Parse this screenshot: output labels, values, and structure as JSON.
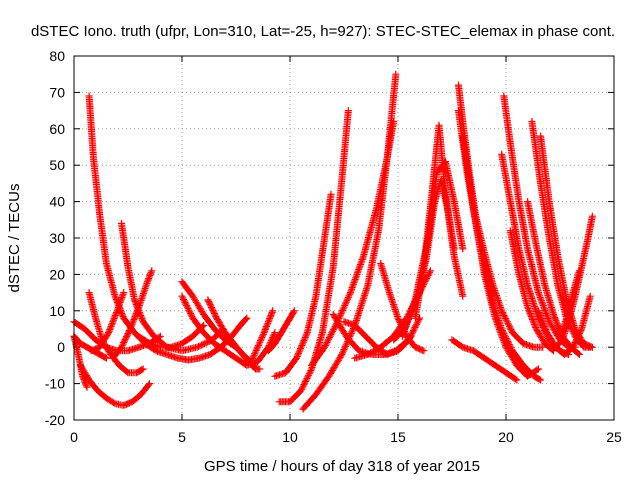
{
  "chart_data": {
    "type": "scatter",
    "title": "dSTEC Iono. truth (ufpr, Lon=310, Lat=-25, h=927): STEC-STEC_elemax in phase cont.",
    "xlabel": "GPS time / hours of day 318 of year 2015",
    "ylabel": "dSTEC  / TECUs",
    "xlim": [
      0,
      25
    ],
    "ylim": [
      -20,
      80
    ],
    "xticks": [
      0,
      5,
      10,
      15,
      20,
      25
    ],
    "yticks": [
      -20,
      -10,
      0,
      10,
      20,
      30,
      40,
      50,
      60,
      70,
      80
    ],
    "grid": true,
    "marker": "+",
    "marker_color": "#ff0000",
    "series": [
      {
        "x": [
          0.7,
          0.9,
          1.2,
          1.5,
          1.9,
          2.3,
          2.8,
          3.3,
          3.8,
          4.3,
          4.8,
          5.3,
          5.8,
          6.3,
          6.8,
          7.3,
          7.7,
          8.0
        ],
        "y": [
          69,
          52,
          36,
          23,
          14,
          8,
          4,
          1,
          -1,
          -2,
          -3,
          -3.5,
          -3,
          -2,
          0,
          3,
          6,
          8
        ]
      },
      {
        "x": [
          0.0,
          0.3,
          0.6,
          0.9,
          1.2,
          1.5
        ],
        "y": [
          3,
          1,
          0,
          -1,
          -2,
          -3
        ]
      },
      {
        "x": [
          0.0,
          0.5,
          1.0,
          1.5,
          2.0,
          2.5,
          3.0,
          3.5,
          4.0
        ],
        "y": [
          7,
          5,
          2,
          0,
          -1,
          -1,
          0,
          1,
          3
        ]
      },
      {
        "x": [
          0.7,
          1.0,
          1.3,
          1.7,
          2.1,
          2.5,
          2.9,
          3.2
        ],
        "y": [
          15,
          8,
          2,
          -2,
          -5,
          -7,
          -7,
          -6
        ]
      },
      {
        "x": [
          0.0,
          0.2,
          0.4,
          0.6
        ],
        "y": [
          3,
          -2,
          -8,
          -11
        ]
      },
      {
        "x": [
          0.3,
          0.7,
          1.1,
          1.5,
          1.9,
          2.3,
          2.7,
          3.1,
          3.5
        ],
        "y": [
          -5,
          -9,
          -12,
          -14,
          -15.5,
          -16,
          -15,
          -13,
          -10
        ]
      },
      {
        "x": [
          0.8,
          1.2,
          1.6,
          2.0,
          2.3
        ],
        "y": [
          -1,
          0,
          4,
          10,
          15
        ]
      },
      {
        "x": [
          2.2,
          2.5,
          2.8,
          3.2,
          3.7,
          4.3,
          5.0,
          5.7,
          6.4,
          6.9
        ],
        "y": [
          34,
          22,
          13,
          7,
          3,
          0,
          -1,
          0,
          2,
          5
        ]
      },
      {
        "x": [
          1.8,
          2.2,
          2.6,
          3.0,
          3.4,
          3.6
        ],
        "y": [
          -3,
          0,
          5,
          11,
          18,
          21
        ]
      },
      {
        "x": [
          3.0,
          3.5,
          4.0,
          4.5,
          5.0,
          5.5,
          6.0
        ],
        "y": [
          3,
          1,
          0,
          0,
          1,
          3,
          6
        ]
      },
      {
        "x": [
          5.0,
          5.5,
          6.0,
          6.5,
          7.0,
          7.5,
          8.0,
          8.3
        ],
        "y": [
          18,
          14,
          9,
          5,
          2,
          0,
          -3,
          -5
        ]
      },
      {
        "x": [
          5.0,
          5.5,
          6.0,
          6.5,
          7.0,
          7.5,
          8.0,
          8.5,
          9.0,
          9.3
        ],
        "y": [
          14,
          8,
          4,
          1,
          -1,
          -3,
          -5,
          -4,
          0,
          4
        ]
      },
      {
        "x": [
          6.2,
          6.6,
          7.0,
          7.4,
          7.8,
          8.1,
          8.4,
          8.6
        ],
        "y": [
          13,
          8,
          4,
          1,
          -2,
          -4,
          -6,
          -6
        ]
      },
      {
        "x": [
          8.2,
          8.5,
          8.8,
          9.0,
          9.2
        ],
        "y": [
          -4,
          0,
          4,
          7,
          10
        ]
      },
      {
        "x": [
          9.0,
          9.3,
          9.6,
          9.9,
          10.2
        ],
        "y": [
          -1,
          1,
          4,
          7,
          10
        ]
      },
      {
        "x": [
          9.3,
          9.8,
          10.3,
          10.8,
          11.2,
          11.6,
          11.9
        ],
        "y": [
          -8,
          -7,
          -3,
          4,
          14,
          30,
          42
        ]
      },
      {
        "x": [
          9.5,
          10.0,
          10.5,
          11.0,
          11.5,
          12.0,
          12.4,
          12.7
        ],
        "y": [
          -15,
          -15,
          -12,
          -6,
          4,
          22,
          46,
          65
        ]
      },
      {
        "x": [
          10.6,
          11.2,
          11.8,
          12.4,
          13.0,
          13.6,
          14.1,
          14.5,
          14.9
        ],
        "y": [
          -17,
          -13,
          -8,
          -2,
          6,
          17,
          32,
          52,
          75
        ]
      },
      {
        "x": [
          11.0,
          11.6,
          12.2,
          12.8,
          13.4,
          14.0,
          14.5,
          14.8
        ],
        "y": [
          -5,
          0,
          7,
          15,
          25,
          38,
          52,
          62
        ]
      },
      {
        "x": [
          12.0,
          12.6,
          13.2,
          13.8,
          14.4,
          14.9,
          15.3,
          15.6
        ],
        "y": [
          9,
          3,
          -1,
          -2,
          -2,
          -1,
          1,
          3
        ]
      },
      {
        "x": [
          12.5,
          13.0,
          13.5,
          14.0,
          14.5,
          15.0,
          15.5,
          16.0
        ],
        "y": [
          7,
          6,
          3,
          0,
          -2,
          -1,
          2,
          8
        ]
      },
      {
        "x": [
          14.2,
          14.6,
          15.0,
          15.4,
          15.8,
          16.2
        ],
        "y": [
          23,
          15,
          8,
          3,
          0,
          -1
        ]
      },
      {
        "x": [
          13.0,
          13.6,
          14.2,
          14.8,
          15.4,
          16.0,
          16.5
        ],
        "y": [
          -3,
          -2,
          0,
          3,
          8,
          15,
          21
        ]
      },
      {
        "x": [
          14.8,
          15.3,
          15.8,
          16.3,
          16.7,
          17.0,
          17.3,
          17.6
        ],
        "y": [
          2,
          5,
          12,
          24,
          40,
          46,
          38,
          27
        ]
      },
      {
        "x": [
          15.2,
          15.8,
          16.4,
          16.8,
          17.2,
          17.6,
          18.0
        ],
        "y": [
          3,
          13,
          30,
          48,
          51,
          40,
          27
        ]
      },
      {
        "x": [
          15.8,
          16.2,
          16.6,
          16.9,
          17.2,
          17.6,
          18.0
        ],
        "y": [
          8,
          22,
          44,
          61,
          42,
          25,
          14
        ]
      },
      {
        "x": [
          17.8,
          18.0,
          18.3,
          18.6,
          19.0,
          19.4,
          19.8,
          20.3,
          20.8,
          21.3,
          21.7
        ],
        "y": [
          72,
          62,
          48,
          36,
          26,
          17,
          10,
          4,
          1,
          0,
          0
        ]
      },
      {
        "x": [
          17.8,
          18.2,
          18.6,
          19.0,
          19.4,
          19.8,
          20.3,
          20.8,
          21.3,
          21.6
        ],
        "y": [
          65,
          48,
          34,
          22,
          12,
          5,
          -1,
          -5,
          -8,
          -9
        ]
      },
      {
        "x": [
          18.0,
          18.5,
          19.0,
          19.5,
          20.0,
          20.5,
          21.0,
          21.5
        ],
        "y": [
          58,
          38,
          20,
          8,
          0,
          -5,
          -8,
          -6
        ]
      },
      {
        "x": [
          17.5,
          18.0,
          18.5,
          19.0,
          19.5,
          20.0,
          20.5
        ],
        "y": [
          2,
          0,
          -1,
          -3,
          -5,
          -7,
          -9
        ]
      },
      {
        "x": [
          19.9,
          20.2,
          20.6,
          21.0,
          21.5,
          22.0,
          22.5,
          22.9,
          23.2
        ],
        "y": [
          69,
          56,
          40,
          27,
          15,
          7,
          2,
          0,
          0
        ]
      },
      {
        "x": [
          19.8,
          20.2,
          20.6,
          21.0,
          21.5,
          22.0,
          22.5,
          22.9
        ],
        "y": [
          53,
          40,
          27,
          17,
          8,
          2,
          -1,
          -2
        ]
      },
      {
        "x": [
          20.2,
          20.6,
          21.0,
          21.4,
          21.8,
          22.2
        ],
        "y": [
          32,
          20,
          11,
          5,
          1,
          -1
        ]
      },
      {
        "x": [
          21.2,
          21.6,
          22.0,
          22.4,
          22.8,
          23.2,
          23.6,
          23.9
        ],
        "y": [
          62,
          45,
          30,
          17,
          8,
          3,
          0,
          0
        ]
      },
      {
        "x": [
          21.6,
          22.0,
          22.4,
          22.8,
          23.2,
          23.6,
          24.0
        ],
        "y": [
          58,
          40,
          25,
          13,
          5,
          1,
          0
        ]
      },
      {
        "x": [
          21.0,
          21.4,
          21.8,
          22.2,
          22.6,
          23.0,
          23.4
        ],
        "y": [
          40,
          28,
          17,
          9,
          3,
          0,
          -2
        ]
      },
      {
        "x": [
          21.5,
          21.9,
          22.3,
          22.7,
          23.1,
          23.5,
          23.9
        ],
        "y": [
          10,
          4,
          0,
          -2,
          0,
          5,
          14
        ]
      },
      {
        "x": [
          22.3,
          22.6,
          22.9,
          23.2,
          23.5,
          23.8,
          24.0
        ],
        "y": [
          0,
          2,
          7,
          14,
          22,
          30,
          36
        ]
      },
      {
        "x": [
          22.5,
          22.8,
          23.1,
          23.4
        ],
        "y": [
          2,
          8,
          15,
          21
        ]
      }
    ]
  }
}
